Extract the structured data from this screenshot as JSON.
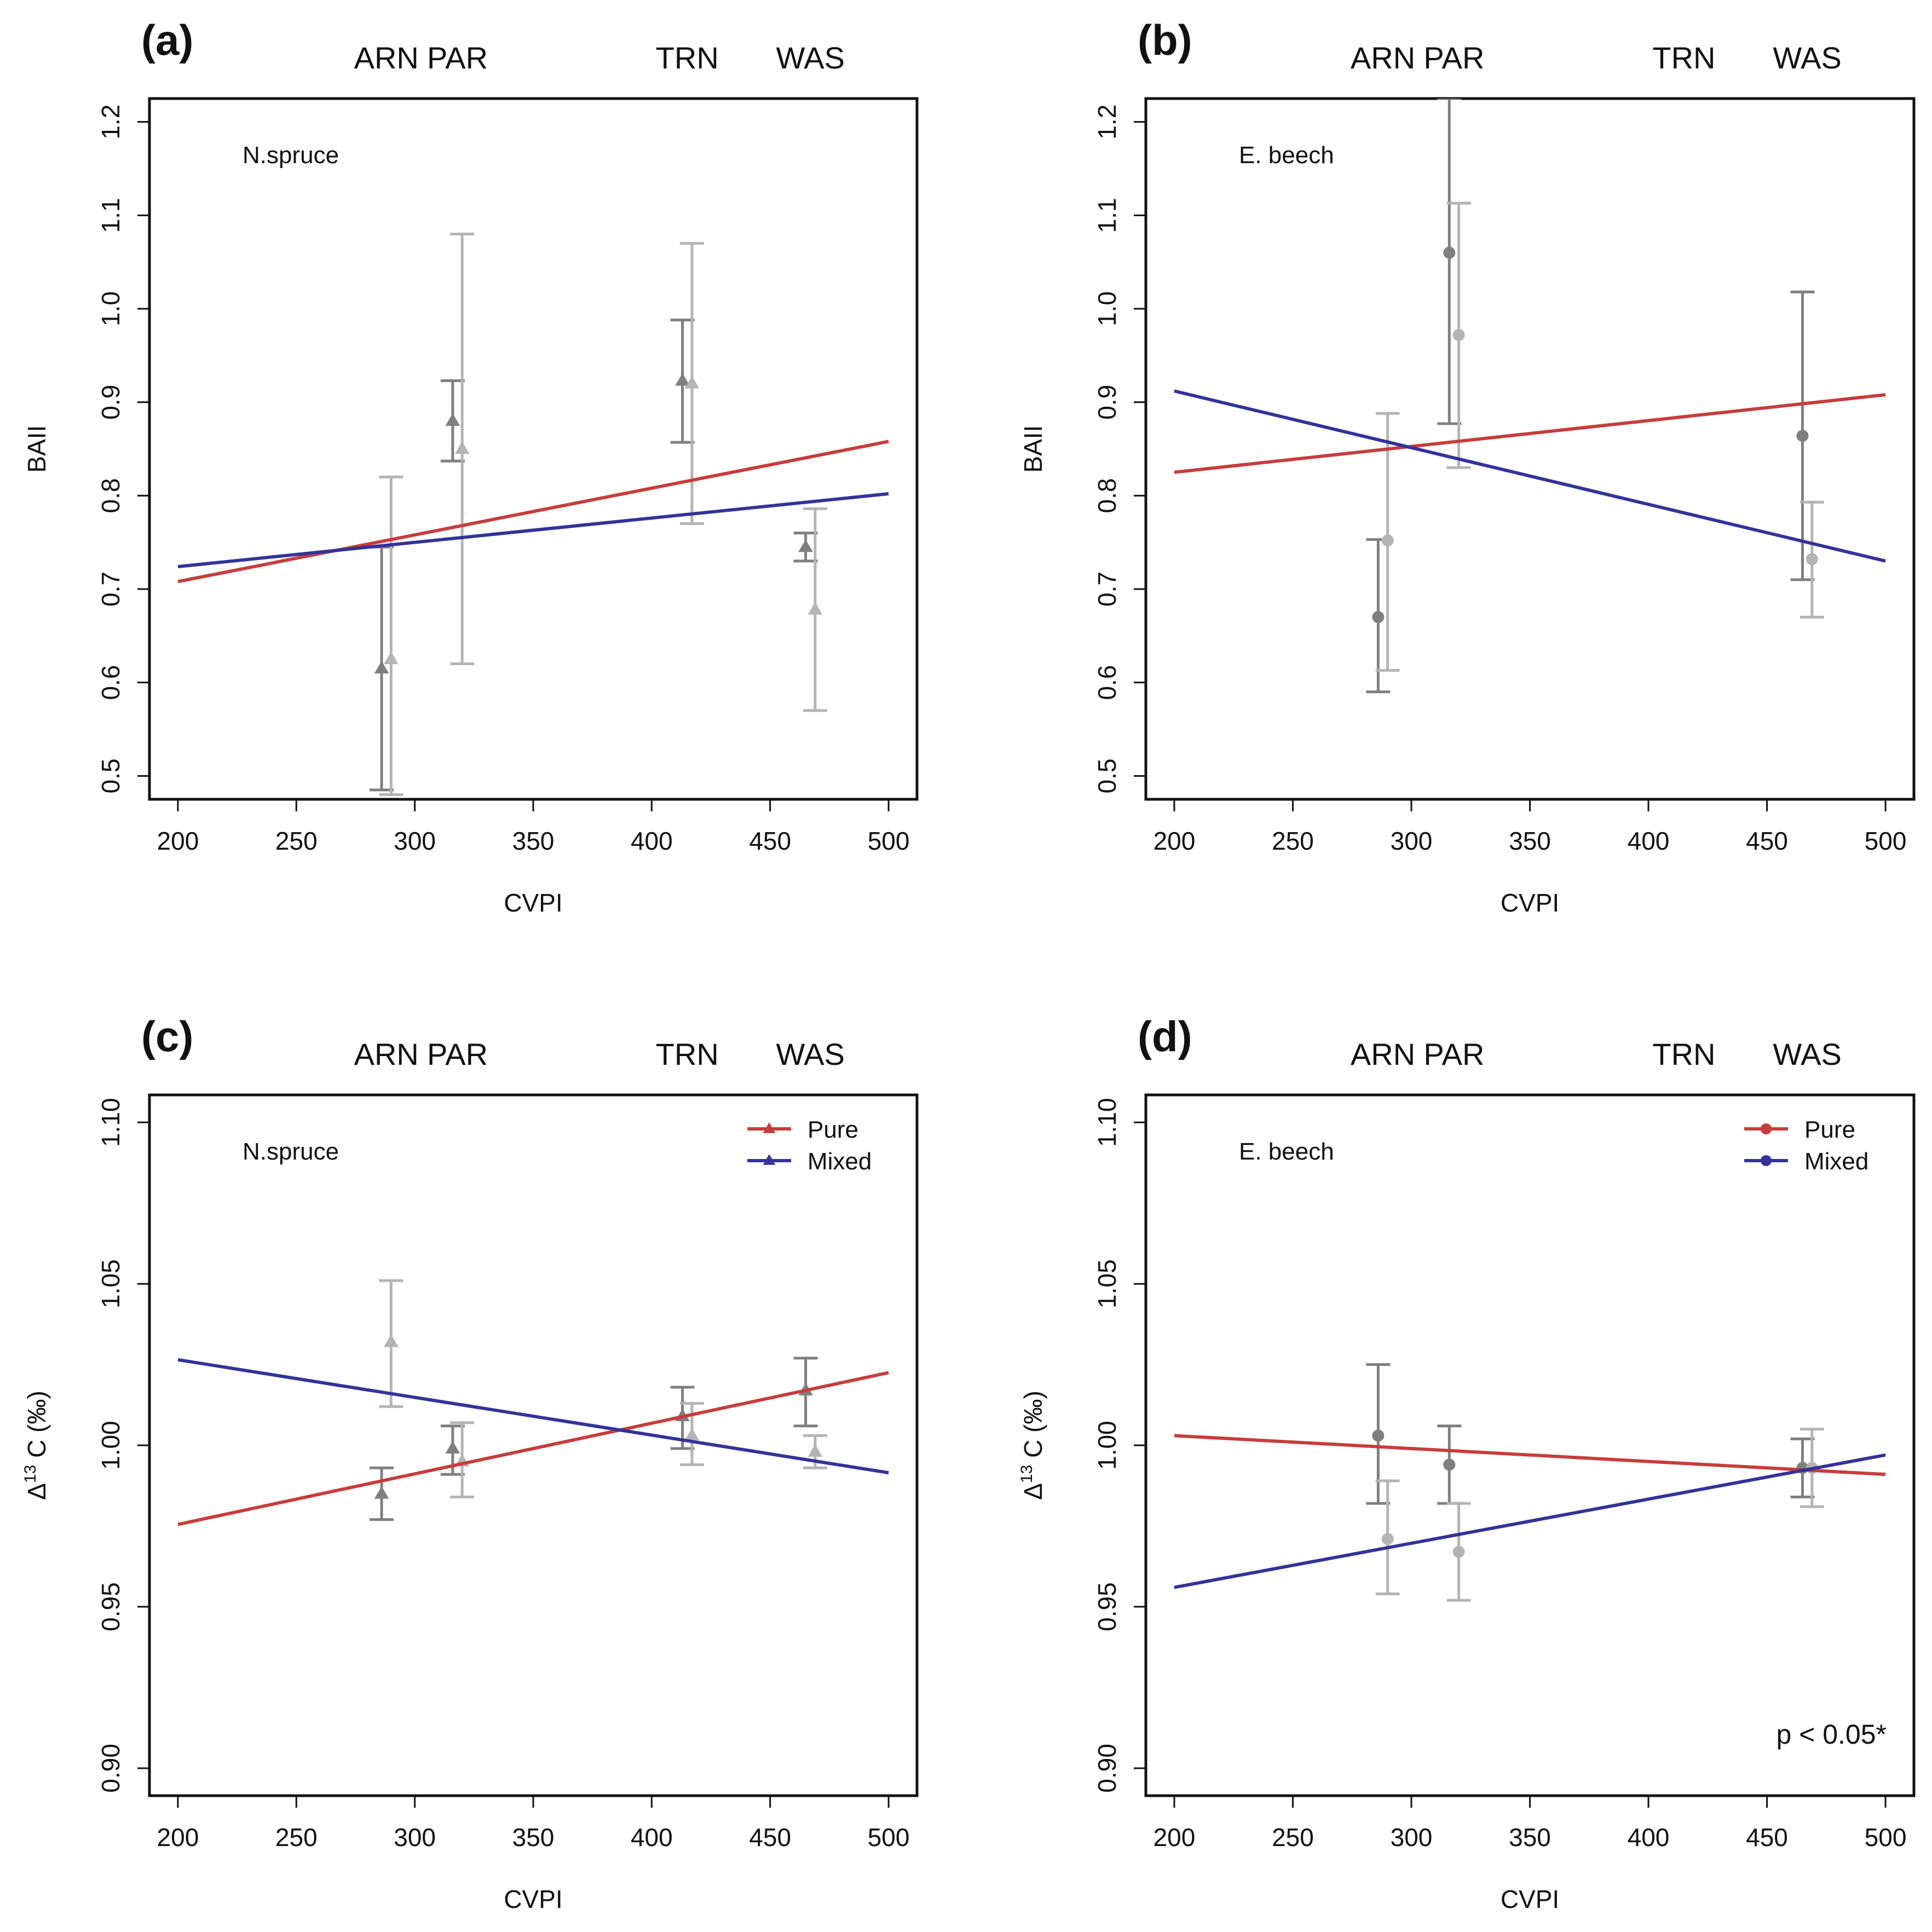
{
  "chart_data": [
    {
      "type": "line",
      "panel_label": "(a)",
      "species": "N.spruce",
      "top_sites": [
        {
          "name": "ARN",
          "x": 288
        },
        {
          "name": "PAR",
          "x": 318
        },
        {
          "name": "TRN",
          "x": 415
        },
        {
          "name": "WAS",
          "x": 467
        }
      ],
      "xlabel": "CVPI",
      "ylabel": "BAII",
      "xlim": [
        188,
        512
      ],
      "ylim": [
        0.475,
        1.225
      ],
      "xticks": [
        200,
        250,
        300,
        350,
        400,
        450,
        500
      ],
      "xtick_labels": [
        "200",
        "250",
        "300",
        "350",
        "400",
        "450",
        "500"
      ],
      "yticks": [
        0.5,
        0.6,
        0.7,
        0.8,
        0.9,
        1.0,
        1.1,
        1.2
      ],
      "ytick_labels": [
        "0.5",
        "0.6",
        "0.7",
        "0.8",
        "0.9",
        "1.0",
        "1.1",
        "1.2"
      ],
      "marker": "triangle",
      "lines": [
        {
          "name": "Pure",
          "color": "#c83c3c",
          "x": [
            200,
            500
          ],
          "y": [
            0.708,
            0.858
          ]
        },
        {
          "name": "Mixed",
          "color": "#33339a",
          "x": [
            200,
            500
          ],
          "y": [
            0.724,
            0.802
          ]
        }
      ],
      "points": [
        {
          "group": "Pure",
          "color": "#7f7f7f",
          "x": 286,
          "y": 0.615,
          "lo": 0.485,
          "hi": 0.745
        },
        {
          "group": "Mixed",
          "color": "#b4b4b4",
          "x": 290,
          "y": 0.625,
          "lo": 0.48,
          "hi": 0.82
        },
        {
          "group": "Pure",
          "color": "#7f7f7f",
          "x": 316,
          "y": 0.88,
          "lo": 0.837,
          "hi": 0.923
        },
        {
          "group": "Mixed",
          "color": "#b4b4b4",
          "x": 320,
          "y": 0.85,
          "lo": 0.62,
          "hi": 1.08
        },
        {
          "group": "Pure",
          "color": "#7f7f7f",
          "x": 413,
          "y": 0.923,
          "lo": 0.857,
          "hi": 0.988
        },
        {
          "group": "Mixed",
          "color": "#b4b4b4",
          "x": 417,
          "y": 0.92,
          "lo": 0.77,
          "hi": 1.07
        },
        {
          "group": "Pure",
          "color": "#7f7f7f",
          "x": 465,
          "y": 0.745,
          "lo": 0.73,
          "hi": 0.76
        },
        {
          "group": "Mixed",
          "color": "#b4b4b4",
          "x": 469,
          "y": 0.678,
          "lo": 0.57,
          "hi": 0.786
        }
      ],
      "legend": null,
      "annotation": null
    },
    {
      "type": "line",
      "panel_label": "(b)",
      "species": "E. beech",
      "top_sites": [
        {
          "name": "ARN",
          "x": 288
        },
        {
          "name": "PAR",
          "x": 318
        },
        {
          "name": "TRN",
          "x": 415
        },
        {
          "name": "WAS",
          "x": 467
        }
      ],
      "xlabel": "CVPI",
      "ylabel": "BAII",
      "xlim": [
        188,
        512
      ],
      "ylim": [
        0.475,
        1.225
      ],
      "xticks": [
        200,
        250,
        300,
        350,
        400,
        450,
        500
      ],
      "xtick_labels": [
        "200",
        "250",
        "300",
        "350",
        "400",
        "450",
        "500"
      ],
      "yticks": [
        0.5,
        0.6,
        0.7,
        0.8,
        0.9,
        1.0,
        1.1,
        1.2
      ],
      "ytick_labels": [
        "0.5",
        "0.6",
        "0.7",
        "0.8",
        "0.9",
        "1.0",
        "1.1",
        "1.2"
      ],
      "marker": "circle",
      "lines": [
        {
          "name": "Pure",
          "color": "#c83c3c",
          "x": [
            200,
            500
          ],
          "y": [
            0.825,
            0.908
          ]
        },
        {
          "name": "Mixed",
          "color": "#33339a",
          "x": [
            200,
            500
          ],
          "y": [
            0.912,
            0.73
          ]
        }
      ],
      "points": [
        {
          "group": "Pure",
          "color": "#7f7f7f",
          "x": 286,
          "y": 0.67,
          "lo": 0.59,
          "hi": 0.753
        },
        {
          "group": "Mixed",
          "color": "#b4b4b4",
          "x": 290,
          "y": 0.752,
          "lo": 0.613,
          "hi": 0.888
        },
        {
          "group": "Pure",
          "color": "#7f7f7f",
          "x": 316,
          "y": 1.06,
          "lo": 0.877,
          "hi": 1.225
        },
        {
          "group": "Mixed",
          "color": "#b4b4b4",
          "x": 320,
          "y": 0.972,
          "lo": 0.83,
          "hi": 1.113
        },
        {
          "group": "Pure",
          "color": "#7f7f7f",
          "x": 465,
          "y": 0.864,
          "lo": 0.71,
          "hi": 1.018
        },
        {
          "group": "Mixed",
          "color": "#b4b4b4",
          "x": 469,
          "y": 0.732,
          "lo": 0.67,
          "hi": 0.793
        }
      ],
      "legend": null,
      "annotation": null
    },
    {
      "type": "line",
      "panel_label": "(c)",
      "species": "N.spruce",
      "top_sites": [
        {
          "name": "ARN",
          "x": 288
        },
        {
          "name": "PAR",
          "x": 318
        },
        {
          "name": "TRN",
          "x": 415
        },
        {
          "name": "WAS",
          "x": 467
        }
      ],
      "xlabel": "CVPI",
      "ylabel_main": "Δ",
      "ylabel_sup": "13",
      "ylabel_rest": " C (‰)",
      "xlim": [
        188,
        512
      ],
      "ylim": [
        0.8915,
        1.1085
      ],
      "xticks": [
        200,
        250,
        300,
        350,
        400,
        450,
        500
      ],
      "xtick_labels": [
        "200",
        "250",
        "300",
        "350",
        "400",
        "450",
        "500"
      ],
      "yticks": [
        0.9,
        0.95,
        1.0,
        1.05,
        1.1
      ],
      "ytick_labels": [
        "0.90",
        "0.95",
        "1.00",
        "1.05",
        "1.10"
      ],
      "marker": "triangle",
      "lines": [
        {
          "name": "Pure",
          "color": "#c83c3c",
          "x": [
            200,
            500
          ],
          "y": [
            0.9755,
            1.0225
          ]
        },
        {
          "name": "Mixed",
          "color": "#33339a",
          "x": [
            200,
            500
          ],
          "y": [
            1.0265,
            0.9915
          ]
        }
      ],
      "points": [
        {
          "group": "Pure",
          "color": "#7f7f7f",
          "x": 286,
          "y": 0.985,
          "lo": 0.977,
          "hi": 0.993
        },
        {
          "group": "Mixed",
          "color": "#b4b4b4",
          "x": 290,
          "y": 1.032,
          "lo": 1.012,
          "hi": 1.051
        },
        {
          "group": "Pure",
          "color": "#7f7f7f",
          "x": 316,
          "y": 0.999,
          "lo": 0.991,
          "hi": 1.006
        },
        {
          "group": "Mixed",
          "color": "#b4b4b4",
          "x": 320,
          "y": 0.995,
          "lo": 0.984,
          "hi": 1.007
        },
        {
          "group": "Pure",
          "color": "#7f7f7f",
          "x": 413,
          "y": 1.009,
          "lo": 0.999,
          "hi": 1.018
        },
        {
          "group": "Mixed",
          "color": "#b4b4b4",
          "x": 417,
          "y": 1.003,
          "lo": 0.994,
          "hi": 1.013
        },
        {
          "group": "Pure",
          "color": "#7f7f7f",
          "x": 465,
          "y": 1.017,
          "lo": 1.006,
          "hi": 1.027
        },
        {
          "group": "Mixed",
          "color": "#b4b4b4",
          "x": 469,
          "y": 0.998,
          "lo": 0.993,
          "hi": 1.003
        }
      ],
      "legend": {
        "position": "top-right",
        "entries": [
          "Pure",
          "Mixed"
        ],
        "colors": [
          "#c83c3c",
          "#33339a"
        ],
        "marker": "triangle"
      },
      "annotation": null
    },
    {
      "type": "line",
      "panel_label": "(d)",
      "species": "E. beech",
      "top_sites": [
        {
          "name": "ARN",
          "x": 288
        },
        {
          "name": "PAR",
          "x": 318
        },
        {
          "name": "TRN",
          "x": 415
        },
        {
          "name": "WAS",
          "x": 467
        }
      ],
      "xlabel": "CVPI",
      "ylabel_main": "Δ",
      "ylabel_sup": "13",
      "ylabel_rest": " C (‰)",
      "xlim": [
        188,
        512
      ],
      "ylim": [
        0.8915,
        1.1085
      ],
      "xticks": [
        200,
        250,
        300,
        350,
        400,
        450,
        500
      ],
      "xtick_labels": [
        "200",
        "250",
        "300",
        "350",
        "400",
        "450",
        "500"
      ],
      "yticks": [
        0.9,
        0.95,
        1.0,
        1.05,
        1.1
      ],
      "ytick_labels": [
        "0.90",
        "0.95",
        "1.00",
        "1.05",
        "1.10"
      ],
      "marker": "circle",
      "lines": [
        {
          "name": "Pure",
          "color": "#c83c3c",
          "x": [
            200,
            500
          ],
          "y": [
            1.003,
            0.991
          ]
        },
        {
          "name": "Mixed",
          "color": "#33339a",
          "x": [
            200,
            500
          ],
          "y": [
            0.956,
            0.997
          ]
        }
      ],
      "points": [
        {
          "group": "Pure",
          "color": "#7f7f7f",
          "x": 286,
          "y": 1.003,
          "lo": 0.982,
          "hi": 1.025
        },
        {
          "group": "Mixed",
          "color": "#b4b4b4",
          "x": 290,
          "y": 0.971,
          "lo": 0.954,
          "hi": 0.989
        },
        {
          "group": "Pure",
          "color": "#7f7f7f",
          "x": 316,
          "y": 0.994,
          "lo": 0.982,
          "hi": 1.006
        },
        {
          "group": "Mixed",
          "color": "#b4b4b4",
          "x": 320,
          "y": 0.967,
          "lo": 0.952,
          "hi": 0.982
        },
        {
          "group": "Pure",
          "color": "#7f7f7f",
          "x": 465,
          "y": 0.993,
          "lo": 0.984,
          "hi": 1.002
        },
        {
          "group": "Mixed",
          "color": "#b4b4b4",
          "x": 469,
          "y": 0.993,
          "lo": 0.981,
          "hi": 1.005
        }
      ],
      "legend": {
        "position": "top-right",
        "entries": [
          "Pure",
          "Mixed"
        ],
        "colors": [
          "#c83c3c",
          "#33339a"
        ],
        "marker": "circle"
      },
      "annotation": "p < 0.05*"
    }
  ]
}
